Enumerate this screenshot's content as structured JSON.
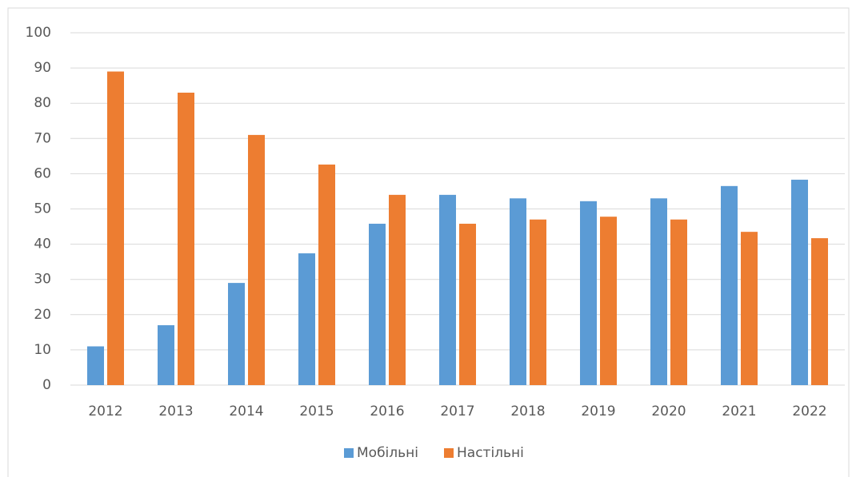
{
  "chart_data": {
    "type": "bar",
    "categories": [
      "2012",
      "2013",
      "2014",
      "2015",
      "2016",
      "2017",
      "2018",
      "2019",
      "2020",
      "2021",
      "2022"
    ],
    "series": [
      {
        "name": "Мобільні",
        "color": "#5b9bd5",
        "values": [
          11,
          17,
          29,
          37.4,
          45.8,
          54,
          53,
          52.2,
          53,
          56.5,
          58.3
        ]
      },
      {
        "name": "Настільні",
        "color": "#ed7d31",
        "values": [
          89,
          83,
          71,
          62.6,
          54,
          45.8,
          47,
          47.8,
          47,
          43.5,
          41.7
        ]
      }
    ],
    "ylim": [
      0,
      100
    ],
    "yticks": [
      0,
      10,
      20,
      30,
      40,
      50,
      60,
      70,
      80,
      90,
      100
    ],
    "grid": true,
    "legend": "bottom"
  }
}
